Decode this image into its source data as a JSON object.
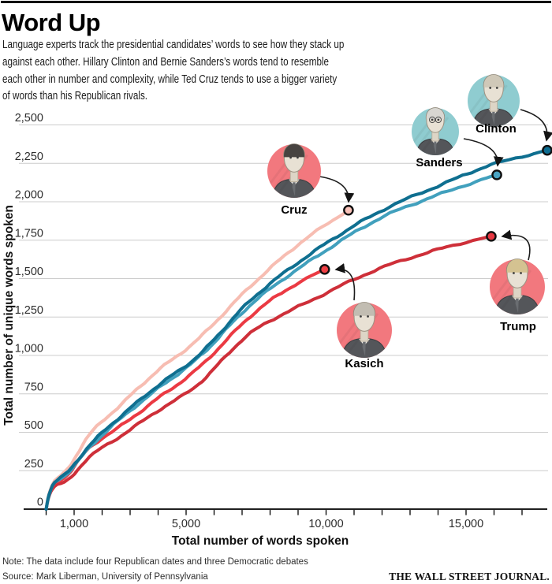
{
  "header": {
    "title": "Word Up",
    "description": "Language experts track the presidential candidates’ words to see how they stack up\nagainst each other. Hillary Clinton and Bernie Sanders’s words tend to resemble\neach other in number and complexity, while Ted Cruz tends to use a bigger variety\nof words than his Republican rivals."
  },
  "chart_data": {
    "type": "line",
    "title": "Word Up",
    "xlabel": "Total number of words spoken",
    "ylabel": "Total number of unique words spoken",
    "xlim": [
      0,
      18100
    ],
    "ylim": [
      0,
      2500
    ],
    "x_ticks_labeled": [
      1000,
      5000,
      10000,
      15000
    ],
    "x_minor_tick_step": 1000,
    "x_minor_tick_max": 17000,
    "y_ticks": [
      0,
      250,
      500,
      750,
      1000,
      1250,
      1500,
      1750,
      2000,
      2250,
      2500
    ],
    "grid": "horizontal",
    "gridline_color": "#cccccc",
    "series": [
      {
        "name": "Clinton",
        "party": "Democratic",
        "line_color": "#0f6f90",
        "dot_color": "#0d6d91",
        "avatar_bg": "#8fccd0",
        "points": [
          [
            0,
            0
          ],
          [
            100,
            90
          ],
          [
            300,
            175
          ],
          [
            800,
            245
          ],
          [
            1600,
            425
          ],
          [
            2700,
            610
          ],
          [
            4000,
            805
          ],
          [
            5500,
            1010
          ],
          [
            7400,
            1375
          ],
          [
            9600,
            1680
          ],
          [
            11900,
            1935
          ],
          [
            14300,
            2125
          ],
          [
            15900,
            2240
          ],
          [
            17900,
            2335
          ]
        ]
      },
      {
        "name": "Sanders",
        "party": "Democratic",
        "line_color": "#41a0bd",
        "dot_color": "#4aa5c4",
        "avatar_bg": "#8fccd0",
        "points": [
          [
            0,
            0
          ],
          [
            100,
            85
          ],
          [
            300,
            170
          ],
          [
            800,
            240
          ],
          [
            1600,
            410
          ],
          [
            2700,
            595
          ],
          [
            4000,
            785
          ],
          [
            5500,
            995
          ],
          [
            7400,
            1345
          ],
          [
            9550,
            1630
          ],
          [
            11900,
            1890
          ],
          [
            14300,
            2065
          ],
          [
            16100,
            2175
          ]
        ]
      },
      {
        "name": "Cruz",
        "party": "Republican",
        "line_color": "#f7bdb2",
        "dot_color": "#f9c2b9",
        "avatar_bg": "#f2787e",
        "points": [
          [
            0,
            0
          ],
          [
            100,
            95
          ],
          [
            300,
            185
          ],
          [
            800,
            265
          ],
          [
            1550,
            485
          ],
          [
            2700,
            685
          ],
          [
            3950,
            895
          ],
          [
            5450,
            1110
          ],
          [
            7300,
            1450
          ],
          [
            9100,
            1735
          ],
          [
            10800,
            1945
          ]
        ]
      },
      {
        "name": "Kasich",
        "party": "Republican",
        "line_color": "#eb3a43",
        "dot_color": "#ef4045",
        "avatar_bg": "#f2787e",
        "points": [
          [
            0,
            0
          ],
          [
            100,
            85
          ],
          [
            300,
            165
          ],
          [
            800,
            230
          ],
          [
            1550,
            400
          ],
          [
            2700,
            545
          ],
          [
            3950,
            715
          ],
          [
            5450,
            920
          ],
          [
            7300,
            1255
          ],
          [
            8700,
            1440
          ],
          [
            9950,
            1560
          ]
        ]
      },
      {
        "name": "Trump",
        "party": "Republican",
        "line_color": "#ce2f39",
        "dot_color": "#e73842",
        "avatar_bg": "#f2787e",
        "points": [
          [
            0,
            0
          ],
          [
            100,
            80
          ],
          [
            300,
            150
          ],
          [
            800,
            190
          ],
          [
            1550,
            340
          ],
          [
            2700,
            480
          ],
          [
            3950,
            635
          ],
          [
            5450,
            815
          ],
          [
            7300,
            1145
          ],
          [
            9550,
            1365
          ],
          [
            11900,
            1565
          ],
          [
            14300,
            1705
          ],
          [
            15900,
            1775
          ]
        ]
      }
    ]
  },
  "footer": {
    "note": "Note: The data include four Republican dates and three Democratic debates",
    "source": "Source: Mark Liberman, University of Pennsylvania",
    "brand": "THE WALL STREET JOURNAL."
  }
}
